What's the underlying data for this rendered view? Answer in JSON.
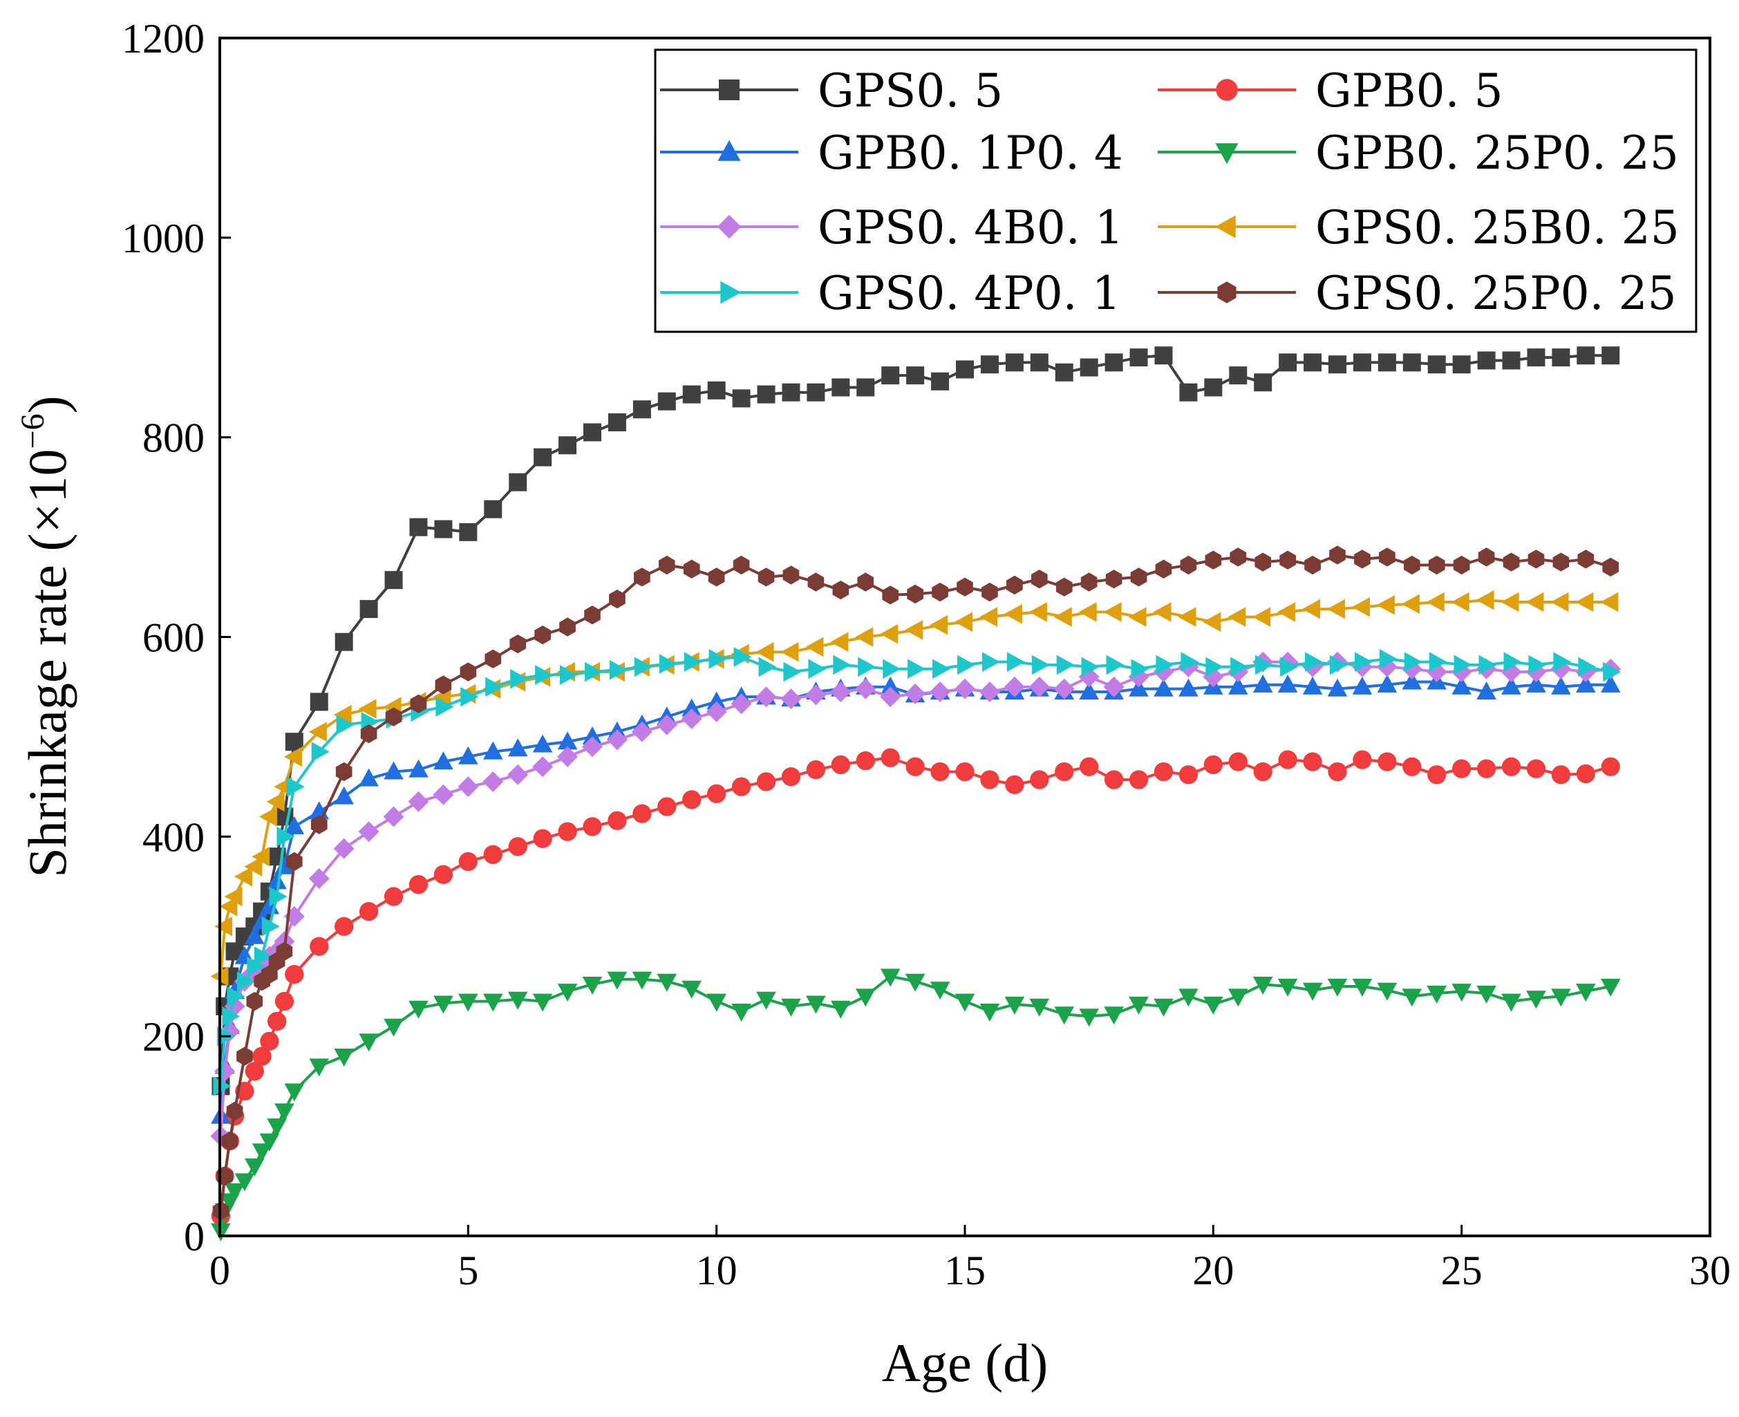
{
  "chart_data": {
    "type": "line",
    "title": "",
    "xlabel": "Age (d)",
    "ylabel_main": "Shrinkage rate (×10",
    "ylabel_exp": "−6",
    "ylabel_tail": ")",
    "xlim": [
      0,
      30
    ],
    "ylim": [
      0,
      1200
    ],
    "xticks": [
      0,
      5,
      10,
      15,
      20,
      25,
      30
    ],
    "yticks": [
      0,
      200,
      400,
      600,
      800,
      1000,
      1200
    ],
    "grid": false,
    "legend_position": "top-right",
    "x": [
      0.02,
      0.1,
      0.2,
      0.3,
      0.5,
      0.7,
      0.85,
      1,
      1.15,
      1.3,
      1.5,
      2,
      2.5,
      3,
      3.5,
      4,
      4.5,
      5,
      5.5,
      6,
      6.5,
      7,
      7.5,
      8,
      8.5,
      9,
      9.5,
      10,
      10.5,
      11,
      11.5,
      12,
      12.5,
      13,
      13.5,
      14,
      14.5,
      15,
      15.5,
      16,
      16.5,
      17,
      17.5,
      18,
      18.5,
      19,
      19.5,
      20,
      20.5,
      21,
      21.5,
      22,
      22.5,
      23,
      23.5,
      24,
      24.5,
      25,
      25.5,
      26,
      26.5,
      27,
      27.5,
      28
    ],
    "series": [
      {
        "name": "GPS0. 5",
        "color": "#404040",
        "marker": "square",
        "values": [
          150,
          230,
          260,
          285,
          300,
          310,
          325,
          345,
          380,
          420,
          495,
          535,
          595,
          628,
          657,
          710,
          708,
          705,
          728,
          755,
          780,
          792,
          805,
          815,
          828,
          836,
          843,
          847,
          839,
          843,
          845,
          845,
          850,
          850,
          862,
          862,
          856,
          868,
          873,
          875,
          875,
          865,
          870,
          875,
          880,
          882,
          845,
          850,
          862,
          855,
          875,
          875,
          873,
          875,
          875,
          875,
          873,
          873,
          877,
          877,
          880,
          880,
          882,
          882
        ]
      },
      {
        "name": "GPB0. 5",
        "color": "#f03c3c",
        "marker": "circle",
        "values": [
          20,
          60,
          95,
          120,
          145,
          165,
          180,
          195,
          215,
          235,
          262,
          290,
          310,
          325,
          340,
          352,
          362,
          375,
          382,
          390,
          398,
          405,
          410,
          416,
          423,
          430,
          437,
          443,
          450,
          455,
          460,
          467,
          472,
          476,
          479,
          470,
          465,
          465,
          457,
          452,
          457,
          465,
          470,
          457,
          457,
          465,
          462,
          472,
          475,
          465,
          477,
          475,
          465,
          477,
          475,
          470,
          462,
          468,
          468,
          470,
          468,
          462,
          463,
          470
        ]
      },
      {
        "name": "GPB0. 1P0. 4",
        "color": "#1f6fe0",
        "marker": "triangle-up",
        "values": [
          120,
          170,
          210,
          245,
          280,
          300,
          315,
          330,
          355,
          370,
          410,
          425,
          440,
          458,
          465,
          467,
          475,
          480,
          485,
          488,
          492,
          495,
          500,
          505,
          512,
          520,
          528,
          535,
          540,
          540,
          538,
          545,
          548,
          550,
          550,
          542,
          545,
          548,
          545,
          545,
          548,
          545,
          545,
          545,
          548,
          548,
          548,
          550,
          550,
          552,
          552,
          550,
          548,
          550,
          552,
          555,
          555,
          550,
          545,
          550,
          552,
          550,
          552,
          552
        ]
      },
      {
        "name": "GPB0. 25P0. 25",
        "color": "#1ba24a",
        "marker": "triangle-down",
        "values": [
          5,
          25,
          35,
          45,
          55,
          70,
          85,
          95,
          110,
          125,
          145,
          170,
          180,
          195,
          210,
          228,
          233,
          235,
          235,
          237,
          235,
          245,
          252,
          257,
          257,
          255,
          248,
          235,
          225,
          237,
          230,
          233,
          228,
          240,
          260,
          255,
          247,
          235,
          225,
          232,
          230,
          222,
          220,
          222,
          232,
          230,
          240,
          232,
          240,
          252,
          250,
          246,
          250,
          250,
          246,
          240,
          243,
          245,
          243,
          235,
          238,
          240,
          245,
          250
        ]
      },
      {
        "name": "GPS0. 4B0. 1",
        "color": "#c27ce6",
        "marker": "diamond",
        "values": [
          100,
          165,
          205,
          230,
          255,
          265,
          275,
          280,
          285,
          295,
          320,
          358,
          388,
          405,
          420,
          435,
          442,
          450,
          455,
          462,
          470,
          480,
          490,
          497,
          505,
          512,
          518,
          525,
          533,
          540,
          538,
          542,
          545,
          548,
          540,
          543,
          545,
          548,
          545,
          550,
          550,
          548,
          560,
          550,
          560,
          565,
          570,
          560,
          565,
          575,
          575,
          570,
          575,
          570,
          570,
          568,
          565,
          565,
          568,
          565,
          565,
          568,
          565,
          568
        ]
      },
      {
        "name": "GPS0. 25B0. 25",
        "color": "#dfa010",
        "marker": "triangle-left",
        "values": [
          260,
          310,
          330,
          340,
          360,
          370,
          380,
          420,
          435,
          450,
          480,
          505,
          522,
          528,
          530,
          535,
          540,
          543,
          548,
          555,
          560,
          565,
          565,
          565,
          570,
          572,
          575,
          578,
          583,
          585,
          585,
          590,
          595,
          600,
          603,
          607,
          612,
          615,
          620,
          623,
          625,
          620,
          625,
          625,
          620,
          625,
          620,
          615,
          620,
          620,
          625,
          628,
          628,
          630,
          632,
          633,
          635,
          635,
          637,
          635,
          635,
          635,
          635,
          635
        ]
      },
      {
        "name": "GPS0. 4P0. 1",
        "color": "#1dc7cb",
        "marker": "triangle-right",
        "values": [
          150,
          200,
          220,
          240,
          255,
          270,
          280,
          310,
          340,
          400,
          450,
          485,
          512,
          515,
          518,
          525,
          530,
          540,
          550,
          558,
          562,
          562,
          565,
          567,
          570,
          573,
          575,
          578,
          580,
          570,
          565,
          568,
          572,
          570,
          568,
          568,
          568,
          572,
          575,
          575,
          572,
          572,
          570,
          572,
          568,
          572,
          575,
          570,
          570,
          572,
          570,
          575,
          572,
          575,
          578,
          575,
          575,
          572,
          572,
          575,
          572,
          575,
          570,
          565
        ]
      },
      {
        "name": "GPS0. 25P0. 25",
        "color": "#7b3c35",
        "marker": "hexagon",
        "values": [
          25,
          60,
          95,
          125,
          180,
          235,
          255,
          262,
          275,
          285,
          375,
          412,
          465,
          503,
          520,
          533,
          552,
          565,
          578,
          593,
          602,
          610,
          622,
          638,
          660,
          672,
          668,
          660,
          672,
          660,
          662,
          655,
          647,
          655,
          642,
          643,
          645,
          650,
          645,
          652,
          658,
          650,
          655,
          658,
          660,
          668,
          672,
          677,
          680,
          675,
          677,
          672,
          682,
          678,
          680,
          672,
          672,
          672,
          680,
          675,
          678,
          675,
          678,
          670
        ]
      }
    ]
  }
}
